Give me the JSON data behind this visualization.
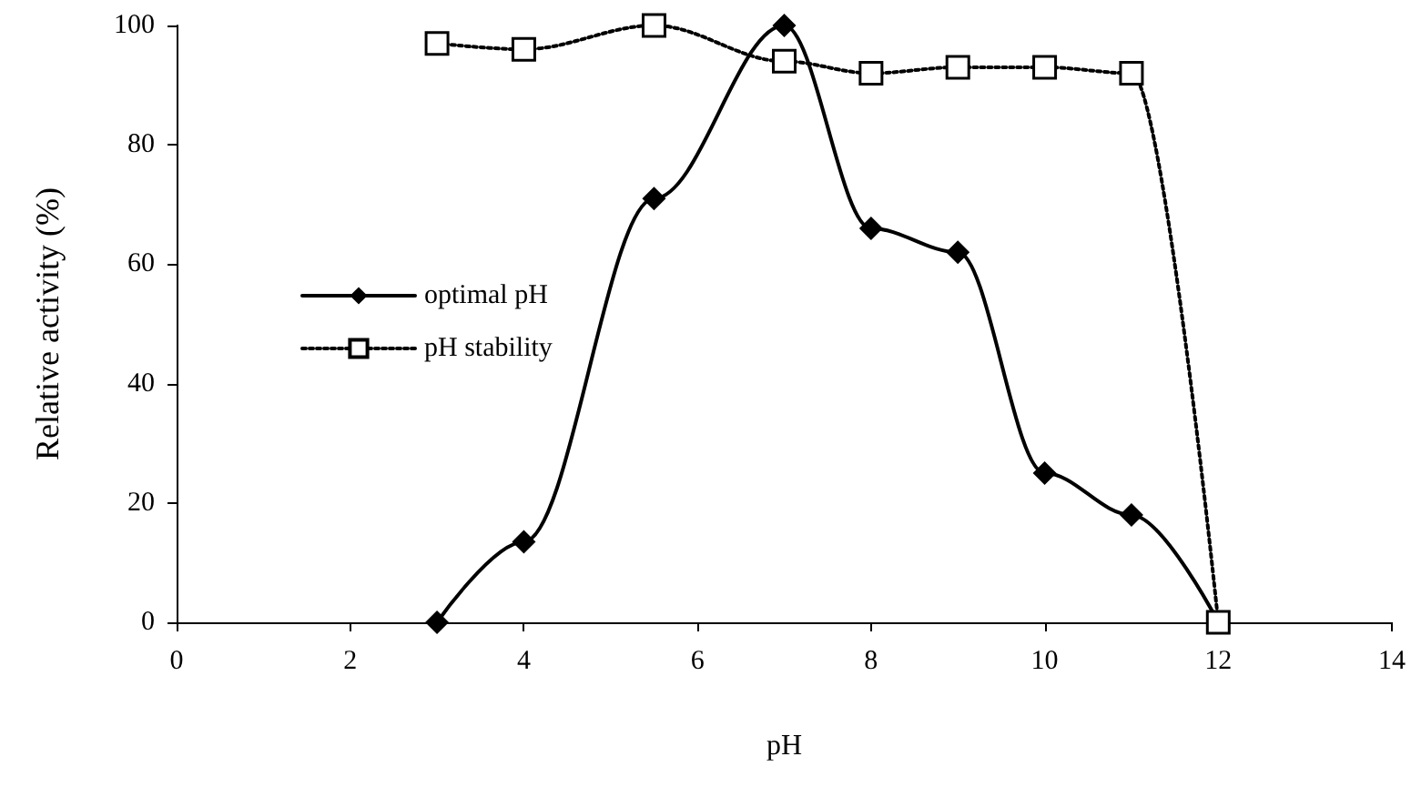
{
  "chart_data": {
    "type": "line",
    "xlabel": "pH",
    "ylabel": "Relative activity (%)",
    "xlim": [
      0,
      14
    ],
    "xticks": [
      0,
      2,
      4,
      6,
      8,
      10,
      12,
      14
    ],
    "ylim": [
      0,
      100
    ],
    "yticks": [
      0,
      20,
      40,
      60,
      80,
      100
    ],
    "grid": false,
    "legend": "left",
    "series": [
      {
        "name": "optimal pH",
        "color": "#000000",
        "marker": "diamond",
        "line_style": "solid",
        "x": [
          3,
          4,
          5.5,
          7,
          8,
          9,
          10,
          11,
          12
        ],
        "values": [
          0,
          13.5,
          71,
          100,
          66,
          62,
          25,
          18,
          0
        ]
      },
      {
        "name": "pH stability",
        "color": "#000000",
        "marker": "square",
        "line_style": "dotted",
        "x": [
          3,
          4,
          5.5,
          7,
          8,
          9,
          10,
          11,
          12
        ],
        "values": [
          97,
          96,
          100,
          94,
          92,
          93,
          93,
          92,
          0
        ]
      }
    ]
  }
}
